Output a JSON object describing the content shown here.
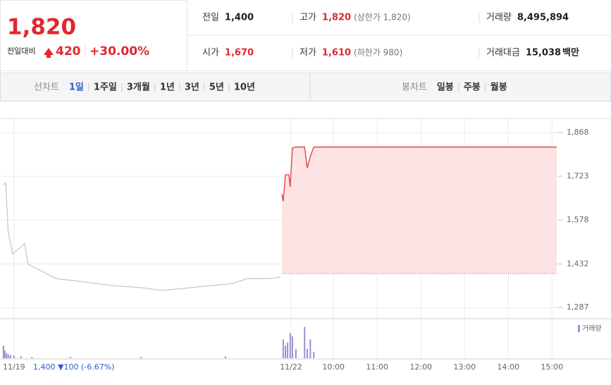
{
  "header": {
    "price": "1,820",
    "change_label": "전일대비",
    "change": "420",
    "change_pct": "+30.00%"
  },
  "summary": {
    "rows": [
      [
        {
          "label": "전일",
          "value": "1,400"
        },
        {
          "label": "고가",
          "value": "1,820",
          "note": "(상한가 1,820)"
        },
        {
          "label": "거래량",
          "value": "8,495,894"
        }
      ],
      [
        {
          "label": "시가",
          "value": "1,670"
        },
        {
          "label": "저가",
          "value": "1,610",
          "note": "(하한가 980)"
        },
        {
          "label": "거래대금",
          "value": "15,038",
          "unit": "백만"
        }
      ]
    ]
  },
  "tabs": {
    "line_label": "선차트",
    "line_tabs": [
      "1일",
      "1주일",
      "3개월",
      "1년",
      "3년",
      "5년",
      "10년"
    ],
    "candle_label": "봉차트",
    "candle_tabs": [
      "일봉",
      "주봉",
      "월봉"
    ]
  },
  "chart_data": {
    "type": "line",
    "xlim": [
      2.37,
      16.35
    ],
    "xticks": [
      {
        "value": 2.69,
        "label": "11/19"
      },
      {
        "value": 9.03,
        "label": "11/22"
      },
      {
        "value": 10,
        "label": "10:00"
      },
      {
        "value": 11,
        "label": "11:00"
      },
      {
        "value": 12,
        "label": "12:00"
      },
      {
        "value": 13,
        "label": "13:00"
      },
      {
        "value": 14,
        "label": "14:00"
      },
      {
        "value": 15,
        "label": "15:00"
      }
    ],
    "ylim": [
      1250,
      1915
    ],
    "yticks": [
      {
        "value": 1287,
        "label": "1,287"
      },
      {
        "value": 1432,
        "label": "1,432"
      },
      {
        "value": 1578,
        "label": "1,578"
      },
      {
        "value": 1723,
        "label": "1,723"
      },
      {
        "value": 1868,
        "label": "1,868"
      }
    ],
    "grid": true,
    "baseline": 1400,
    "annotation": "1,400 ▼100 (-6.67%)",
    "series": [
      {
        "color": "#c8c8c8",
        "fill": false,
        "x": [
          2.45,
          2.5,
          2.56,
          2.66,
          2.85,
          2.93,
          3.02,
          3.34,
          3.66,
          4.31,
          4.95,
          5.6,
          6.08,
          6.72,
          7.21,
          7.69,
          8.02,
          8.5,
          8.79
        ],
        "values": [
          1695,
          1700,
          1535,
          1465,
          1489,
          1500,
          1430,
          1407,
          1383,
          1372,
          1360,
          1353,
          1344,
          1353,
          1360,
          1367,
          1383,
          1383,
          1388
        ]
      },
      {
        "color": "#e5383b",
        "fill": true,
        "x": [
          8.82,
          8.85,
          8.9,
          8.98,
          9.01,
          9.06,
          9.14,
          9.34,
          9.4,
          9.47,
          9.55,
          15.11
        ],
        "values": [
          1664,
          1640,
          1728,
          1728,
          1688,
          1817,
          1820,
          1820,
          1751,
          1789,
          1820,
          1820
        ]
      }
    ],
    "volume": {
      "name": "거래량",
      "color": "#9b8fd0",
      "vlim": [
        0,
        900000
      ],
      "x": [
        2.45,
        2.48,
        2.52,
        2.56,
        2.61,
        2.69,
        2.85,
        3.1,
        3.98,
        5.6,
        7.53,
        8.85,
        8.9,
        8.95,
        9.01,
        9.06,
        9.14,
        9.34,
        9.4,
        9.47,
        9.55
      ],
      "values": [
        320000,
        190000,
        130000,
        95000,
        80000,
        64000,
        48000,
        32000,
        32000,
        32000,
        48000,
        480000,
        320000,
        400000,
        640000,
        560000,
        240000,
        800000,
        240000,
        480000,
        160000
      ]
    }
  }
}
